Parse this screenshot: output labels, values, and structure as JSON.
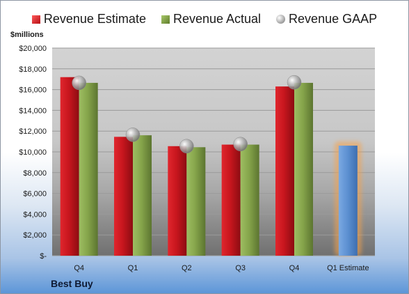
{
  "legend": {
    "estimate": "Revenue Estimate",
    "actual": "Revenue Actual",
    "gaap": "Revenue GAAP"
  },
  "unit_label": "$millions",
  "company": "Best Buy",
  "colors": {
    "estimate": "#c8161e",
    "actual": "#86a54b",
    "gaap": "#a6a6a6",
    "forecast": "#5b8fd0",
    "forecast_glow": "#f7a24a"
  },
  "chart_data": {
    "type": "bar",
    "categories": [
      "Q4",
      "Q1",
      "Q2",
      "Q3",
      "Q4",
      "Q1 Estimate"
    ],
    "ylim": [
      0,
      20000
    ],
    "yticks": [
      "$-",
      "$2,000",
      "$4,000",
      "$6,000",
      "$8,000",
      "$10,000",
      "$12,000",
      "$14,000",
      "$16,000",
      "$18,000",
      "$20,000"
    ],
    "ylabel": "$millions",
    "series": [
      {
        "name": "Revenue Estimate",
        "kind": "bar",
        "values": [
          17200,
          11450,
          10550,
          10700,
          16300,
          null
        ]
      },
      {
        "name": "Revenue Actual",
        "kind": "bar",
        "values": [
          16650,
          11600,
          10450,
          10700,
          16650,
          10600
        ]
      },
      {
        "name": "Revenue GAAP",
        "kind": "marker",
        "values": [
          16650,
          11650,
          10550,
          10750,
          16700,
          null
        ]
      }
    ]
  }
}
